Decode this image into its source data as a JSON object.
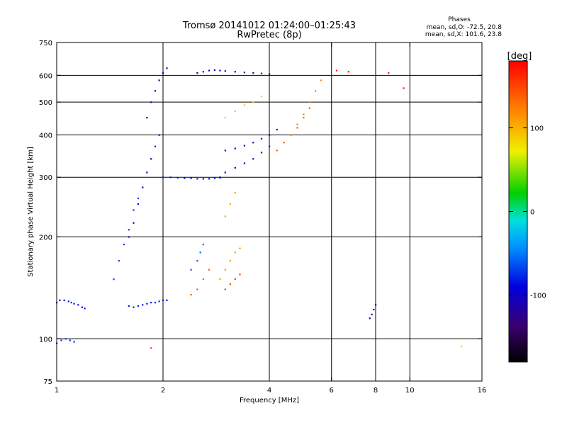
{
  "chart_data": {
    "type": "scatter",
    "title_line1": "Tromsø 20141012 01:24:00–01:25:43",
    "title_line2": "RwPretec (8p)",
    "stats": {
      "heading": "Phases",
      "line_o": "mean, sd,O: -72.5, 20.8",
      "line_x": "mean, sd,X: 101.6, 23.8"
    },
    "xlabel": "Frequency [MHz]",
    "ylabel": "Stationary phase Virtual Height [km]",
    "xscale": "log",
    "yscale": "log",
    "xlim": [
      1,
      16
    ],
    "ylim": [
      75,
      750
    ],
    "grid": true,
    "x_ticks": [
      {
        "v": 1,
        "label": "1"
      },
      {
        "v": 2,
        "label": "2"
      },
      {
        "v": 4,
        "label": "4"
      },
      {
        "v": 6,
        "label": "6"
      },
      {
        "v": 8,
        "label": "8"
      },
      {
        "v": 10,
        "label": "10"
      },
      {
        "v": 16,
        "label": "16"
      }
    ],
    "x_gridlines": [
      2,
      4,
      6,
      8,
      10
    ],
    "y_ticks": [
      {
        "v": 75,
        "label": "75"
      },
      {
        "v": 100,
        "label": "100"
      },
      {
        "v": 200,
        "label": "200"
      },
      {
        "v": 300,
        "label": "300"
      },
      {
        "v": 400,
        "label": "400"
      },
      {
        "v": 500,
        "label": "500"
      },
      {
        "v": 600,
        "label": "600"
      },
      {
        "v": 750,
        "label": "750"
      }
    ],
    "y_gridlines": [
      100,
      200,
      300,
      400,
      500,
      600
    ],
    "colorbar": {
      "label": "[deg]",
      "min": -180,
      "max": 180,
      "ticks": [
        {
          "v": 100,
          "label": "100"
        },
        {
          "v": 0,
          "label": "0"
        },
        {
          "v": -100,
          "label": "-100"
        }
      ]
    },
    "series": [
      {
        "x": [
          1.0,
          1.02,
          1.05,
          1.08,
          1.1,
          1.12,
          1.15,
          1.18,
          1.2
        ],
        "y": [
          128,
          130,
          130,
          129,
          128,
          127,
          126,
          124,
          123
        ],
        "phase": -85
      },
      {
        "x": [
          1.0,
          1.03,
          1.06,
          1.09,
          1.12
        ],
        "y": [
          97,
          99,
          100,
          99,
          98
        ],
        "phase": -75
      },
      {
        "x": [
          1.6,
          1.65,
          1.7,
          1.75,
          1.8,
          1.85,
          1.9,
          1.95,
          2.0,
          2.05
        ],
        "y": [
          125,
          124,
          125,
          126,
          127,
          128,
          128,
          129,
          130,
          130
        ],
        "phase": -82
      },
      {
        "x": [
          1.45,
          1.5,
          1.55,
          1.6,
          1.65,
          1.7,
          1.75
        ],
        "y": [
          150,
          170,
          190,
          210,
          240,
          260,
          280
        ],
        "phase": -70
      },
      {
        "x": [
          1.6,
          1.65,
          1.7,
          1.75,
          1.8,
          1.85,
          1.9,
          1.95
        ],
        "y": [
          200,
          220,
          250,
          280,
          310,
          340,
          370,
          400
        ],
        "phase": -95
      },
      {
        "x": [
          1.8,
          1.85,
          1.9,
          1.95,
          2.0,
          2.05
        ],
        "y": [
          450,
          500,
          540,
          580,
          610,
          630
        ],
        "phase": -110
      },
      {
        "x": [
          2.0,
          2.1,
          2.2,
          2.3,
          2.4,
          2.5,
          2.6,
          2.7,
          2.8,
          2.9
        ],
        "y": [
          300,
          300,
          299,
          298,
          298,
          297,
          297,
          297,
          298,
          299
        ],
        "phase": -80
      },
      {
        "x": [
          2.9,
          3.0,
          3.2,
          3.4,
          3.6,
          3.8,
          4.0
        ],
        "y": [
          300,
          310,
          320,
          330,
          340,
          355,
          370
        ],
        "phase": -105
      },
      {
        "x": [
          3.0,
          3.2,
          3.4,
          3.6,
          3.8,
          4.0,
          4.2
        ],
        "y": [
          360,
          365,
          372,
          380,
          390,
          400,
          415
        ],
        "phase": -100
      },
      {
        "x": [
          2.4,
          2.5,
          2.6,
          2.7
        ],
        "y": [
          135,
          140,
          150,
          160
        ],
        "phase": 140
      },
      {
        "x": [
          2.9,
          3.0,
          3.1,
          3.2,
          3.3
        ],
        "y": [
          150,
          160,
          170,
          180,
          185
        ],
        "phase": 110
      },
      {
        "x": [
          3.0,
          3.1,
          3.2,
          3.3
        ],
        "y": [
          140,
          145,
          150,
          155
        ],
        "phase": 150
      },
      {
        "x": [
          4.0,
          4.2,
          4.4,
          4.6,
          4.8,
          5.0,
          5.2
        ],
        "y": [
          350,
          360,
          380,
          400,
          420,
          450,
          480
        ],
        "phase": 140
      },
      {
        "x": [
          4.6,
          4.8,
          5.0,
          5.2,
          5.4,
          5.6
        ],
        "y": [
          400,
          430,
          460,
          500,
          540,
          580
        ],
        "phase": 120
      },
      {
        "x": [
          3.0,
          3.2,
          3.4,
          3.6,
          3.8
        ],
        "y": [
          450,
          470,
          490,
          500,
          520
        ],
        "phase": 90
      },
      {
        "x": [
          3.0,
          3.1,
          3.2
        ],
        "y": [
          230,
          250,
          270
        ],
        "phase": 105
      },
      {
        "x": [
          2.5,
          2.6,
          2.7,
          2.8,
          2.9,
          3.0,
          3.2,
          3.4,
          3.6,
          3.8,
          4.0
        ],
        "y": [
          610,
          615,
          620,
          622,
          620,
          618,
          615,
          612,
          610,
          608,
          605
        ],
        "phase": -115
      },
      {
        "x": [
          2.4,
          2.5,
          2.55,
          2.6
        ],
        "y": [
          160,
          170,
          180,
          190
        ],
        "phase": -60
      },
      {
        "x": [
          7.7,
          7.8,
          7.9,
          8.0
        ],
        "y": [
          115,
          118,
          122,
          126
        ],
        "phase": -120
      },
      {
        "x": [
          6.2,
          6.7,
          8.7,
          9.6
        ],
        "y": [
          620,
          615,
          610,
          550
        ],
        "phase": 170
      },
      {
        "x": [
          14.0
        ],
        "y": [
          95
        ],
        "phase": 90
      },
      {
        "x": [
          1.85
        ],
        "y": [
          94
        ],
        "phase": 150
      }
    ]
  }
}
